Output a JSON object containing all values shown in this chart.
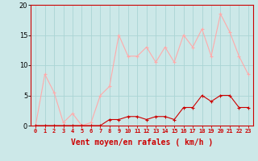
{
  "x": [
    0,
    1,
    2,
    3,
    4,
    5,
    6,
    7,
    8,
    9,
    10,
    11,
    12,
    13,
    14,
    15,
    16,
    17,
    18,
    19,
    20,
    21,
    22,
    23
  ],
  "wind_avg": [
    0,
    0,
    0,
    0,
    0,
    0,
    0,
    0,
    1,
    1,
    1.5,
    1.5,
    1,
    1.5,
    1.5,
    1,
    3,
    3,
    5,
    4,
    5,
    5,
    3,
    3
  ],
  "wind_gust": [
    0,
    8.5,
    5.5,
    0.5,
    2,
    0,
    0.5,
    5,
    6.5,
    15,
    11.5,
    11.5,
    13,
    10.5,
    13,
    10.5,
    15,
    13,
    16,
    11.5,
    18.5,
    15.5,
    11.5,
    8.5
  ],
  "avg_color": "#cc0000",
  "gust_color": "#ffaaaa",
  "bg_color": "#cce8e8",
  "grid_color": "#aad4d4",
  "xlabel": "Vent moyen/en rafales ( km/h )",
  "ylim": [
    0,
    20
  ],
  "yticks": [
    0,
    5,
    10,
    15,
    20
  ],
  "xticks": [
    0,
    1,
    2,
    3,
    4,
    5,
    6,
    7,
    8,
    9,
    10,
    11,
    12,
    13,
    14,
    15,
    16,
    17,
    18,
    19,
    20,
    21,
    22,
    23
  ],
  "tick_fontsize": 5,
  "xlabel_fontsize": 7
}
